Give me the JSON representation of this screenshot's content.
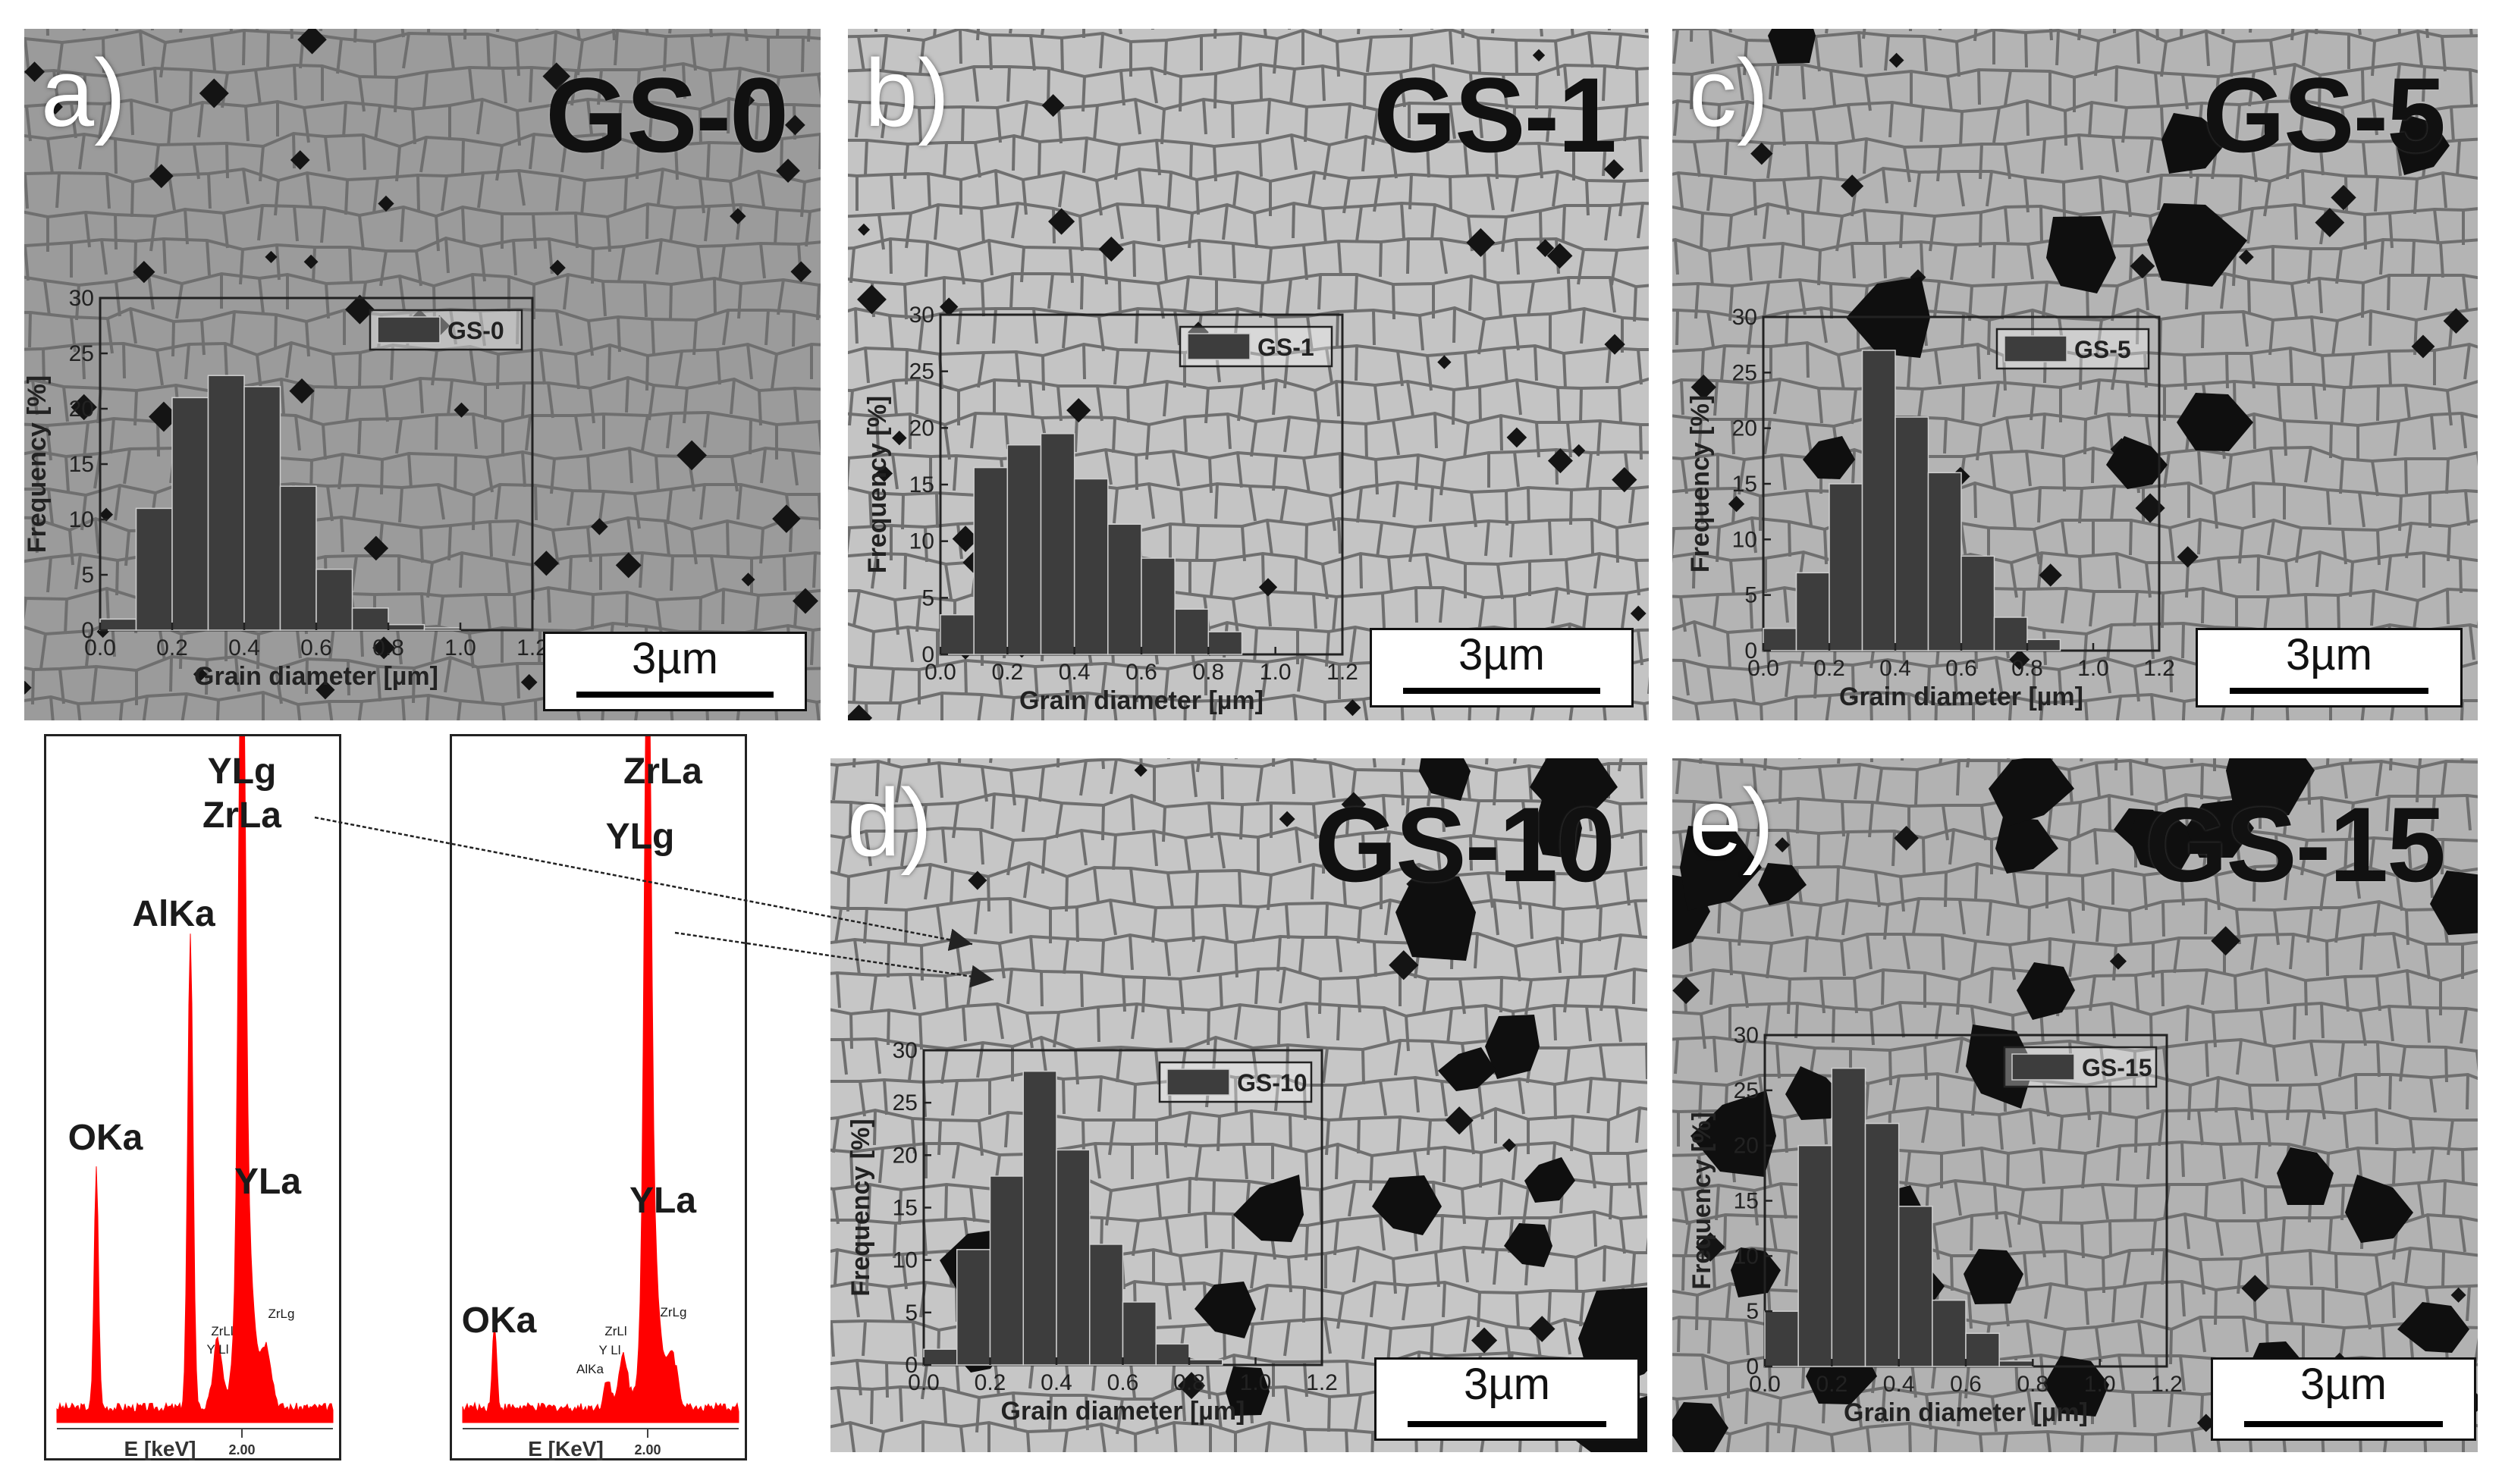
{
  "colors": {
    "bar": "#3d3d3d",
    "spectrum": "#ff0000",
    "grain_bg": "#9a9a9a",
    "pore": "#111111"
  },
  "scale_label": "3µm",
  "panels": [
    {
      "letter": "a)",
      "name": "GS-0"
    },
    {
      "letter": "b)",
      "name": "GS-1"
    },
    {
      "letter": "c)",
      "name": "GS-5"
    },
    {
      "letter": "d)",
      "name": "GS-10"
    },
    {
      "letter": "e)",
      "name": "GS-15"
    }
  ],
  "chart_data": [
    {
      "type": "bar",
      "series": [
        {
          "name": "GS-0",
          "values": [
            1,
            11,
            21,
            23,
            22,
            13,
            5.5,
            2,
            0.5,
            0.2,
            0,
            0
          ]
        }
      ],
      "x_edges": [
        0,
        0.1,
        0.2,
        0.3,
        0.4,
        0.5,
        0.6,
        0.7,
        0.8,
        0.9,
        1.0,
        1.1,
        1.2
      ],
      "xlabel": "Grain diameter [µm]",
      "ylabel": "Frequency [%]",
      "ylim": [
        0,
        30
      ],
      "xlim": [
        0,
        1.2
      ],
      "xticks": [
        "0.0",
        "0.2",
        "0.4",
        "0.6",
        "0.8",
        "1.0",
        "1.2"
      ],
      "yticks": [
        "0",
        "5",
        "10",
        "15",
        "20",
        "25",
        "30"
      ]
    },
    {
      "type": "bar",
      "series": [
        {
          "name": "GS-1",
          "values": [
            3.5,
            16.5,
            18.5,
            19.5,
            15.5,
            11.5,
            8.5,
            4,
            2,
            0,
            0,
            0
          ]
        }
      ],
      "x_edges": [
        0,
        0.1,
        0.2,
        0.3,
        0.4,
        0.5,
        0.6,
        0.7,
        0.8,
        0.9,
        1.0,
        1.1,
        1.2
      ],
      "xlabel": "Grain diameter [µm]",
      "ylabel": "Frequency [%]",
      "ylim": [
        0,
        30
      ],
      "xlim": [
        0,
        1.2
      ],
      "xticks": [
        "0.0",
        "0.2",
        "0.4",
        "0.6",
        "0.8",
        "1.0",
        "1.2"
      ],
      "yticks": [
        "0",
        "5",
        "10",
        "15",
        "20",
        "25",
        "30"
      ]
    },
    {
      "type": "bar",
      "series": [
        {
          "name": "GS-5",
          "values": [
            2,
            7,
            15,
            27,
            21,
            16,
            8.5,
            3,
            1,
            0,
            0,
            0
          ]
        }
      ],
      "x_edges": [
        0,
        0.1,
        0.2,
        0.3,
        0.4,
        0.5,
        0.6,
        0.7,
        0.8,
        0.9,
        1.0,
        1.1,
        1.2
      ],
      "xlabel": "Grain diameter [µm]",
      "ylabel": "Frequency [%]",
      "ylim": [
        0,
        30
      ],
      "xlim": [
        0,
        1.2
      ],
      "xticks": [
        "0.0",
        "0.2",
        "0.4",
        "0.6",
        "0.8",
        "1.0",
        "1.2"
      ],
      "yticks": [
        "0",
        "5",
        "10",
        "15",
        "20",
        "25",
        "30"
      ]
    },
    {
      "type": "bar",
      "series": [
        {
          "name": "GS-10",
          "values": [
            1.5,
            11,
            18,
            28,
            20.5,
            11.5,
            6,
            2,
            0.5,
            0,
            0,
            0
          ]
        }
      ],
      "x_edges": [
        0,
        0.1,
        0.2,
        0.3,
        0.4,
        0.5,
        0.6,
        0.7,
        0.8,
        0.9,
        1.0,
        1.1,
        1.2
      ],
      "xlabel": "Grain diameter [µm]",
      "ylabel": "Frequency [%]",
      "ylim": [
        0,
        30
      ],
      "xlim": [
        0,
        1.2
      ],
      "xticks": [
        "0.0",
        "0.2",
        "0.4",
        "0.6",
        "0.8",
        "1.0",
        "1.2"
      ],
      "yticks": [
        "0",
        "5",
        "10",
        "15",
        "20",
        "25",
        "30"
      ]
    },
    {
      "type": "bar",
      "series": [
        {
          "name": "GS-15",
          "values": [
            5,
            20,
            27,
            22,
            14.5,
            6,
            3,
            0.5,
            0,
            0,
            0,
            0
          ]
        }
      ],
      "x_edges": [
        0,
        0.1,
        0.2,
        0.3,
        0.4,
        0.5,
        0.6,
        0.7,
        0.8,
        0.9,
        1.0,
        1.1,
        1.2
      ],
      "xlabel": "Grain diameter [µm]",
      "ylabel": "Frequency [%]",
      "ylim": [
        0,
        30
      ],
      "xlim": [
        0,
        1.2
      ],
      "xticks": [
        "0.0",
        "0.2",
        "0.4",
        "0.6",
        "0.8",
        "1.0",
        "1.2"
      ],
      "yticks": [
        "0",
        "5",
        "10",
        "15",
        "20",
        "25",
        "30"
      ]
    }
  ],
  "edx": [
    {
      "xlabel": "E [keV]",
      "xtick": "2.00",
      "peaks": [
        {
          "label": "YLg\nZrLa",
          "big": true
        },
        {
          "label": "AlKa",
          "big": true
        },
        {
          "label": "OKa",
          "big": true
        },
        {
          "label": "YLa",
          "big": true
        },
        {
          "label": "ZrLg",
          "big": false
        },
        {
          "label": "ZrLl",
          "big": false
        },
        {
          "label": "Y Ll",
          "big": false
        }
      ]
    },
    {
      "xlabel": "E [KeV]",
      "xtick": "2.00",
      "peaks": [
        {
          "label": "ZrLa",
          "big": true
        },
        {
          "label": "YLg",
          "big": true
        },
        {
          "label": "YLa",
          "big": true
        },
        {
          "label": "OKa",
          "big": true
        },
        {
          "label": "ZrLg",
          "big": false
        },
        {
          "label": "ZrLl",
          "big": false
        },
        {
          "label": "Y Ll",
          "big": false
        },
        {
          "label": "AlKa",
          "big": false
        }
      ]
    }
  ]
}
